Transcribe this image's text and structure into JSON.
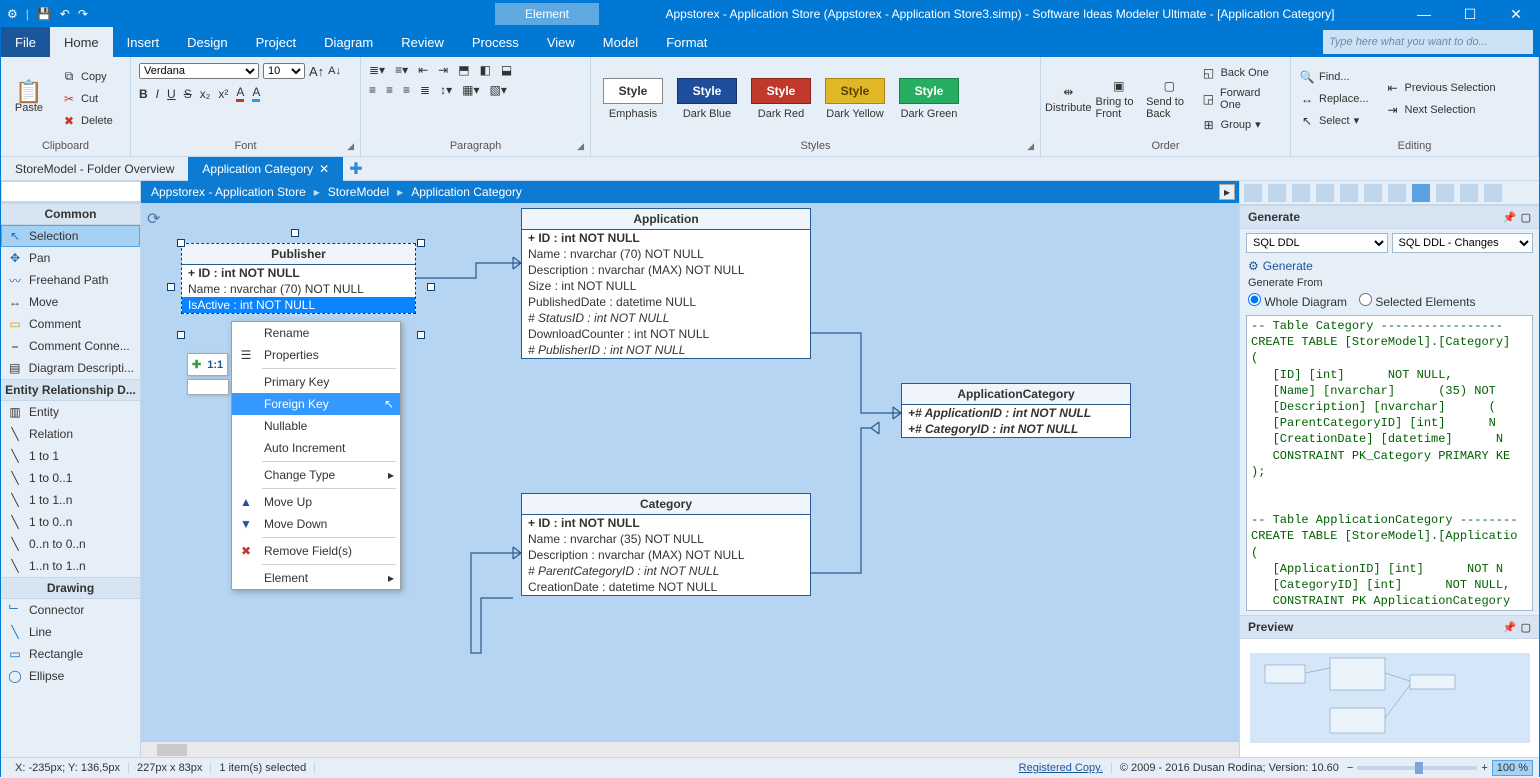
{
  "colors": {
    "primary": "#0078d4",
    "ribbon_bg": "#e6eef7",
    "canvas_bg": "#b5d5f2",
    "entity_border": "#2a5a8e"
  },
  "titlebar": {
    "context_tab": "Element",
    "title": "Appstorex - Application Store (Appstorex - Application Store3.simp)  - Software Ideas Modeler Ultimate - [Application Category]"
  },
  "menu": {
    "file": "File",
    "home": "Home",
    "insert": "Insert",
    "design": "Design",
    "project": "Project",
    "diagram": "Diagram",
    "review": "Review",
    "process": "Process",
    "view": "View",
    "model": "Model",
    "format": "Format",
    "search_placeholder": "Type here what you want to do..."
  },
  "ribbon": {
    "clipboard": {
      "paste": "Paste",
      "copy": "Copy",
      "cut": "Cut",
      "delete": "Delete",
      "label": "Clipboard"
    },
    "font": {
      "family": "Verdana",
      "size": "10",
      "label": "Font"
    },
    "paragraph": {
      "label": "Paragraph"
    },
    "styles": {
      "label": "Styles",
      "items": [
        {
          "name": "Style",
          "sub": "Emphasis",
          "bg": "#ffffff",
          "fg": "#333333",
          "border": "#888888"
        },
        {
          "name": "Style",
          "sub": "Dark Blue",
          "bg": "#1f4e9c",
          "fg": "#ffffff",
          "border": "#13336b"
        },
        {
          "name": "Style",
          "sub": "Dark Red",
          "bg": "#c0392b",
          "fg": "#ffffff",
          "border": "#8a2319"
        },
        {
          "name": "Style",
          "sub": "Dark Yellow",
          "bg": "#e0b826",
          "fg": "#5a4200",
          "border": "#a88814"
        },
        {
          "name": "Style",
          "sub": "Dark Green",
          "bg": "#27ae60",
          "fg": "#ffffff",
          "border": "#188347"
        }
      ]
    },
    "order": {
      "distribute": "Distribute",
      "bring_front": "Bring to Front",
      "send_back": "Send to Back",
      "back_one": "Back One",
      "forward_one": "Forward One",
      "group": "Group",
      "label": "Order"
    },
    "editing": {
      "find": "Find...",
      "replace": "Replace...",
      "select": "Select",
      "prev_sel": "Previous Selection",
      "next_sel": "Next Selection",
      "label": "Editing"
    }
  },
  "tabs": {
    "t1": "StoreModel - Folder Overview",
    "t2": "Application Category"
  },
  "toolbox": {
    "common_hdr": "Common",
    "selection": "Selection",
    "pan": "Pan",
    "freehand": "Freehand Path",
    "move": "Move",
    "comment": "Comment",
    "comment_conn": "Comment Conne...",
    "diagram_desc": "Diagram Descripti...",
    "erd_hdr": "Entity Relationship D...",
    "entity": "Entity",
    "relation": "Relation",
    "r1to1": "1 to 1",
    "r1to01": "1 to 0..1",
    "r1to1n": "1 to 1..n",
    "r1to0n": "1 to 0..n",
    "r0nto0n": "0..n to 0..n",
    "r1nto1n": "1..n to 1..n",
    "drawing_hdr": "Drawing",
    "connector": "Connector",
    "line": "Line",
    "rectangle": "Rectangle",
    "ellipse": "Ellipse"
  },
  "breadcrumb": {
    "b1": "Appstorex - Application Store",
    "b2": "StoreModel",
    "b3": "Application Category"
  },
  "entities": {
    "publisher": {
      "title": "Publisher",
      "pk": "+ ID : int NOT NULL",
      "r1": "Name : nvarchar (70)  NOT NULL",
      "r2": "IsActive : int NOT NULL"
    },
    "application": {
      "title": "Application",
      "pk": "+ ID : int NOT NULL",
      "r1": "Name : nvarchar (70)  NOT NULL",
      "r2": "Description : nvarchar (MAX)  NOT NULL",
      "r3": "Size : int NOT NULL",
      "r4": "PublishedDate : datetime NULL",
      "r5": "# StatusID : int NOT NULL",
      "r6": "DownloadCounter : int NOT NULL",
      "r7": "# PublisherID : int NOT NULL"
    },
    "appcat": {
      "title": "ApplicationCategory",
      "r1": "+# ApplicationID : int NOT NULL",
      "r2": "+# CategoryID : int NOT NULL"
    },
    "category": {
      "title": "Category",
      "pk": "+ ID : int NOT NULL",
      "r1": "Name : nvarchar (35)  NOT NULL",
      "r2": "Description : nvarchar (MAX)  NOT NULL",
      "r3": "# ParentCategoryID : int NOT NULL",
      "r4": "CreationDate : datetime NOT NULL"
    }
  },
  "float": {
    "ratio": "1:1"
  },
  "context_menu": {
    "rename": "Rename",
    "properties": "Properties",
    "primary_key": "Primary Key",
    "foreign_key": "Foreign Key",
    "nullable": "Nullable",
    "auto_increment": "Auto Increment",
    "change_type": "Change Type",
    "move_up": "Move Up",
    "move_down": "Move Down",
    "remove_fields": "Remove Field(s)",
    "element": "Element"
  },
  "generate": {
    "hdr": "Generate",
    "sel1": "SQL DDL",
    "sel2": "SQL DDL - Changes",
    "link": "Generate",
    "from": "Generate From",
    "opt1": "Whole Diagram",
    "opt2": "Selected Elements",
    "sql": "-- Table Category -----------------\nCREATE TABLE [StoreModel].[Category]\n(\n   [ID] [int]      NOT NULL,\n   [Name] [nvarchar]      (35) NOT\n   [Description] [nvarchar]      (\n   [ParentCategoryID] [int]      N\n   [CreationDate] [datetime]      N\n   CONSTRAINT PK_Category PRIMARY KE\n);\n\n\n-- Table ApplicationCategory --------\nCREATE TABLE [StoreModel].[Applicatio\n(\n   [ApplicationID] [int]      NOT N\n   [CategoryID] [int]      NOT NULL,\n   CONSTRAINT PK ApplicationCategory"
  },
  "preview": {
    "hdr": "Preview"
  },
  "status": {
    "coords": "X: -235px; Y: 136,5px",
    "size": "227px x 83px",
    "sel": "1 item(s) selected",
    "registered": "Registered Copy.",
    "copyright": "© 2009 - 2016 Dusan Rodina; Version: 10.60",
    "zoom": "100 %"
  }
}
